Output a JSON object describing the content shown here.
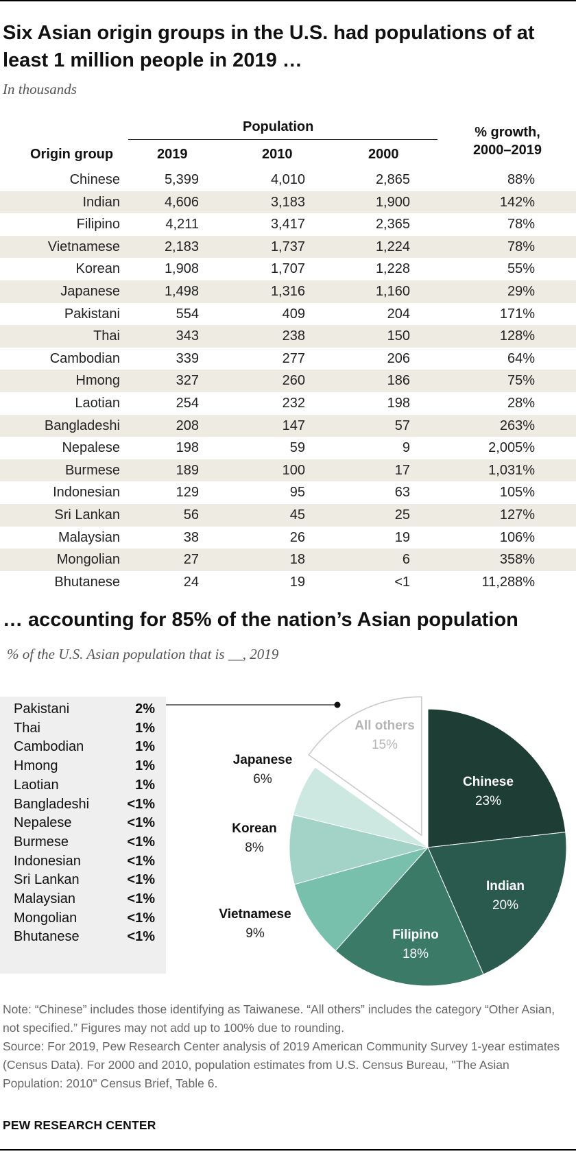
{
  "title": "Six Asian origin groups in the U.S. had populations of at least 1 million people in 2019 …",
  "subtitle": "In thousands",
  "table": {
    "group_header": "Population",
    "col_origin": "Origin group",
    "col_2019": "2019",
    "col_2010": "2010",
    "col_2000": "2000",
    "col_growth_line1": "% growth,",
    "col_growth_line2": "2000–2019",
    "rows": [
      {
        "origin": "Chinese",
        "y2019": "5,399",
        "y2010": "4,010",
        "y2000": "2,865",
        "growth": "88%"
      },
      {
        "origin": "Indian",
        "y2019": "4,606",
        "y2010": "3,183",
        "y2000": "1,900",
        "growth": "142%"
      },
      {
        "origin": "Filipino",
        "y2019": "4,211",
        "y2010": "3,417",
        "y2000": "2,365",
        "growth": "78%"
      },
      {
        "origin": "Vietnamese",
        "y2019": "2,183",
        "y2010": "1,737",
        "y2000": "1,224",
        "growth": "78%"
      },
      {
        "origin": "Korean",
        "y2019": "1,908",
        "y2010": "1,707",
        "y2000": "1,228",
        "growth": "55%"
      },
      {
        "origin": "Japanese",
        "y2019": "1,498",
        "y2010": "1,316",
        "y2000": "1,160",
        "growth": "29%"
      },
      {
        "origin": "Pakistani",
        "y2019": "554",
        "y2010": "409",
        "y2000": "204",
        "growth": "171%"
      },
      {
        "origin": "Thai",
        "y2019": "343",
        "y2010": "238",
        "y2000": "150",
        "growth": "128%"
      },
      {
        "origin": "Cambodian",
        "y2019": "339",
        "y2010": "277",
        "y2000": "206",
        "growth": "64%"
      },
      {
        "origin": "Hmong",
        "y2019": "327",
        "y2010": "260",
        "y2000": "186",
        "growth": "75%"
      },
      {
        "origin": "Laotian",
        "y2019": "254",
        "y2010": "232",
        "y2000": "198",
        "growth": "28%"
      },
      {
        "origin": "Bangladeshi",
        "y2019": "208",
        "y2010": "147",
        "y2000": "57",
        "growth": "263%"
      },
      {
        "origin": "Nepalese",
        "y2019": "198",
        "y2010": "59",
        "y2000": "9",
        "growth": "2,005%"
      },
      {
        "origin": "Burmese",
        "y2019": "189",
        "y2010": "100",
        "y2000": "17",
        "growth": "1,031%"
      },
      {
        "origin": "Indonesian",
        "y2019": "129",
        "y2010": "95",
        "y2000": "63",
        "growth": "105%"
      },
      {
        "origin": "Sri Lankan",
        "y2019": "56",
        "y2010": "45",
        "y2000": "25",
        "growth": "127%"
      },
      {
        "origin": "Malaysian",
        "y2019": "38",
        "y2010": "26",
        "y2000": "19",
        "growth": "106%"
      },
      {
        "origin": "Mongolian",
        "y2019": "27",
        "y2010": "18",
        "y2000": "6",
        "growth": "358%"
      },
      {
        "origin": "Bhutanese",
        "y2019": "24",
        "y2010": "19",
        "y2000": "<1",
        "growth": "11,288%"
      }
    ]
  },
  "title2": "… accounting for 85% of the nation’s Asian population",
  "subtitle2": "% of the U.S. Asian population that is __, 2019",
  "others_breakdown": [
    {
      "name": "Pakistani",
      "pct": "2%"
    },
    {
      "name": "Thai",
      "pct": "1%"
    },
    {
      "name": "Cambodian",
      "pct": "1%"
    },
    {
      "name": "Hmong",
      "pct": "1%"
    },
    {
      "name": "Laotian",
      "pct": "1%"
    },
    {
      "name": "Bangladeshi",
      "pct": "<1%"
    },
    {
      "name": "Nepalese",
      "pct": "<1%"
    },
    {
      "name": "Burmese",
      "pct": "<1%"
    },
    {
      "name": "Indonesian",
      "pct": "<1%"
    },
    {
      "name": "Sri Lankan",
      "pct": "<1%"
    },
    {
      "name": "Malaysian",
      "pct": "<1%"
    },
    {
      "name": "Mongolian",
      "pct": "<1%"
    },
    {
      "name": "Bhutanese",
      "pct": "<1%"
    }
  ],
  "chart_data": {
    "type": "pie",
    "slices": [
      {
        "label": "Chinese",
        "value": 23,
        "display": "23%",
        "color": "#1e3d35"
      },
      {
        "label": "Indian",
        "value": 20,
        "display": "20%",
        "color": "#2a5a4d"
      },
      {
        "label": "Filipino",
        "value": 18,
        "display": "18%",
        "color": "#3b7a66"
      },
      {
        "label": "Vietnamese",
        "value": 9,
        "display": "9%",
        "color": "#78bfac"
      },
      {
        "label": "Korean",
        "value": 8,
        "display": "8%",
        "color": "#a3d3c6"
      },
      {
        "label": "Japanese",
        "value": 6,
        "display": "6%",
        "color": "#cde8e1"
      },
      {
        "label": "All others",
        "value": 15,
        "display": "15%",
        "color": "#ffffff",
        "exploded": true
      }
    ]
  },
  "note": "Note: “Chinese” includes those identifying as Taiwanese. “All others” includes the category “Other Asian, not specified.” Figures may not add up to 100% due to rounding.",
  "source": "Source: For 2019, Pew Research Center analysis of 2019 American Community Survey 1-year estimates (Census Data). For 2000 and 2010, population estimates from U.S. Census Bureau, \"The Asian Population: 2010\" Census Brief, Table 6.",
  "brand": "PEW RESEARCH CENTER"
}
